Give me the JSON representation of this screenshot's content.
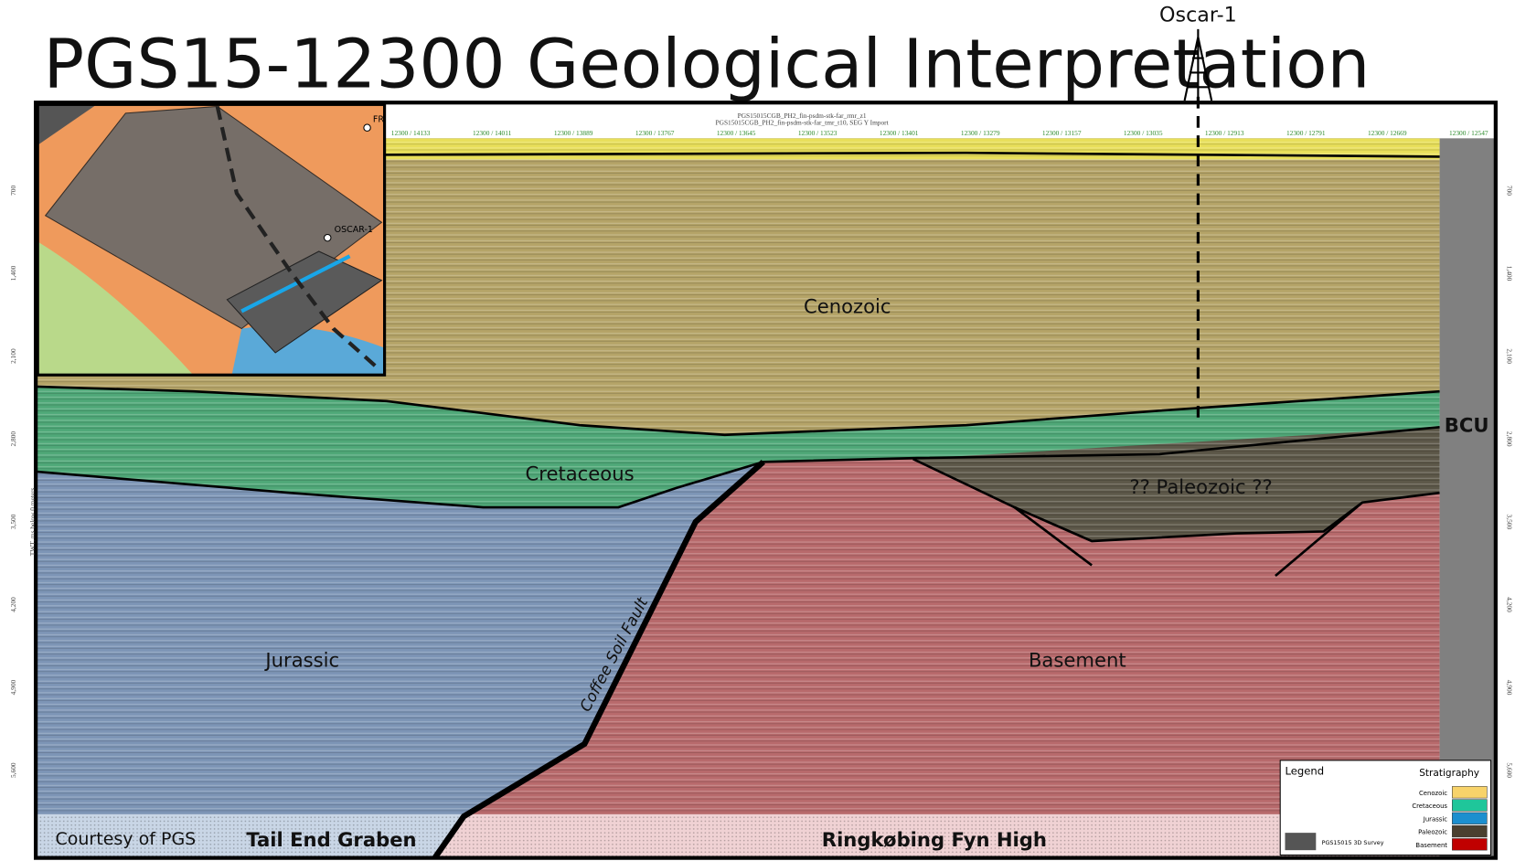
{
  "title": "PGS15-12300 Geological Interpretation",
  "well": "Oscar-1",
  "section": {
    "header": [
      "PGS15015CGB_PH2_fin-psdm-stk-far_rmr_z1",
      "PGS15015CGB_PH2_fin-psdm-stk-far_tmr_t10, SEG Y Import"
    ],
    "traces": [
      "12300 / 14133",
      "12300 / 14011",
      "12300 / 13889",
      "12300 / 13767",
      "12300 / 13645",
      "12300 / 13523",
      "12300 / 13401",
      "12300 / 13279",
      "12300 / 13157",
      "12300 / 13035",
      "12300 / 12913",
      "12300 / 12791",
      "12300 / 12669",
      "12300 / 12547"
    ],
    "depth_ticks": [
      "700",
      "1,400",
      "2,100",
      "2,800",
      "3,500",
      "4,200",
      "4,900",
      "5,600"
    ],
    "depth_label": "TWT, ms below 0 meters"
  },
  "units": {
    "cenozoic": "Cenozoic",
    "cretaceous": "Cretaceous",
    "jurassic": "Jurassic",
    "basement": "Basement",
    "paleozoic": "?? Paleozoic ??",
    "fault": "Coffee Soil Fault",
    "bcu": "BCU"
  },
  "footer": {
    "credit": "Courtesy of PGS",
    "left": "Tail End Graben",
    "right": "Ringkøbing Fyn High"
  },
  "map": {
    "well": "OSCAR-1",
    "other": "FR"
  },
  "legend": {
    "title": "Legend",
    "heading": "Stratigraphy",
    "items": [
      {
        "name": "Cenozoic",
        "color": "#f8d36a"
      },
      {
        "name": "Cretaceous",
        "color": "#1fc69a"
      },
      {
        "name": "Jurassic",
        "color": "#1c8fcf"
      },
      {
        "name": "Paleozoic",
        "color": "#4b4030"
      },
      {
        "name": "Basement",
        "color": "#c00000"
      }
    ],
    "survey": "PGS15015 3D Survey"
  }
}
